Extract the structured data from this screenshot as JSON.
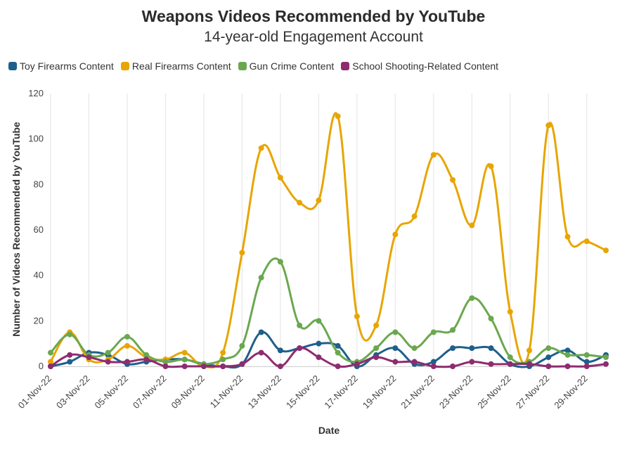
{
  "chart_data": {
    "type": "line",
    "title": "Weapons Videos Recommended by YouTube",
    "subtitle": "14-year-old Engagement Account",
    "xlabel": "Date",
    "ylabel": "Number of Videos Recommended by YouTube",
    "ylim": [
      0,
      120
    ],
    "yticks": [
      "0",
      "20",
      "40",
      "60",
      "80",
      "100",
      "120"
    ],
    "grid": "vertical",
    "legend_position": "top-left",
    "x": [
      "01-Nov-22",
      "02-Nov-22",
      "03-Nov-22",
      "04-Nov-22",
      "05-Nov-22",
      "06-Nov-22",
      "07-Nov-22",
      "08-Nov-22",
      "09-Nov-22",
      "10-Nov-22",
      "11-Nov-22",
      "12-Nov-22",
      "13-Nov-22",
      "14-Nov-22",
      "15-Nov-22",
      "16-Nov-22",
      "17-Nov-22",
      "18-Nov-22",
      "19-Nov-22",
      "20-Nov-22",
      "21-Nov-22",
      "22-Nov-22",
      "23-Nov-22",
      "24-Nov-22",
      "25-Nov-22",
      "26-Nov-22",
      "27-Nov-22",
      "28-Nov-22",
      "29-Nov-22",
      "30-Nov-22"
    ],
    "xtick_labels": [
      "01-Nov-22",
      "03-Nov-22",
      "05-Nov-22",
      "07-Nov-22",
      "09-Nov-22",
      "11-Nov-22",
      "13-Nov-22",
      "15-Nov-22",
      "17-Nov-22",
      "19-Nov-22",
      "21-Nov-22",
      "23-Nov-22",
      "25-Nov-22",
      "27-Nov-22",
      "29-Nov-22"
    ],
    "series": [
      {
        "name": "Toy Firearms Content",
        "color": "#1f5f8b",
        "values": [
          0,
          2,
          6,
          5,
          1,
          2,
          3,
          3,
          1,
          0,
          1,
          15,
          7,
          8,
          10,
          9,
          0,
          5,
          8,
          1,
          2,
          8,
          8,
          8,
          1,
          0,
          4,
          7,
          2,
          5
        ]
      },
      {
        "name": "Real Firearms Content",
        "color": "#e8a500",
        "values": [
          2,
          15,
          3,
          3,
          9,
          4,
          3,
          6,
          0,
          6,
          50,
          96,
          83,
          72,
          73,
          110,
          22,
          18,
          58,
          66,
          93,
          82,
          62,
          88,
          24,
          7,
          106,
          57,
          55,
          51
        ]
      },
      {
        "name": "Gun Crime Content",
        "color": "#6aa84f",
        "values": [
          6,
          14,
          5,
          6,
          13,
          5,
          2,
          3,
          1,
          3,
          9,
          39,
          46,
          18,
          20,
          6,
          2,
          8,
          15,
          8,
          15,
          16,
          30,
          21,
          4,
          2,
          8,
          5,
          5,
          4
        ]
      },
      {
        "name": "School Shooting-Related Content",
        "color": "#8e2c6f",
        "values": [
          0,
          5,
          4,
          2,
          2,
          3,
          0,
          0,
          0,
          0,
          1,
          6,
          0,
          8,
          4,
          0,
          1,
          4,
          2,
          2,
          0,
          0,
          2,
          1,
          1,
          1,
          0,
          0,
          0,
          1
        ]
      }
    ]
  }
}
